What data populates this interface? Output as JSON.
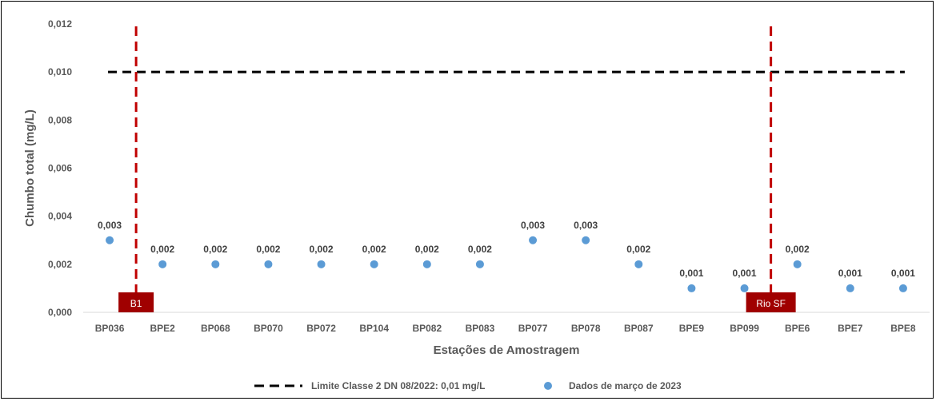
{
  "chart_data": {
    "type": "scatter",
    "ylabel": "Chumbo total (mg/L)",
    "xlabel": "Estações de Amostragem",
    "ylim": [
      0,
      0.012
    ],
    "yticks": [
      0,
      0.002,
      0.004,
      0.006,
      0.008,
      0.01,
      0.012
    ],
    "ytick_labels": [
      "0,000",
      "0,002",
      "0,004",
      "0,006",
      "0,008",
      "0,010",
      "0,012"
    ],
    "categories": [
      "BP036",
      "BPE2",
      "BP068",
      "BP070",
      "BP072",
      "BP104",
      "BP082",
      "BP083",
      "BP077",
      "BP078",
      "BP087",
      "BPE9",
      "BP099",
      "BPE6",
      "BPE7",
      "BPE8"
    ],
    "series": [
      {
        "name": "Dados de março de 2023",
        "color": "#5B9BD5",
        "values": [
          0.003,
          0.002,
          0.002,
          0.002,
          0.002,
          0.002,
          0.002,
          0.002,
          0.003,
          0.003,
          0.002,
          0.001,
          0.001,
          0.002,
          0.001,
          0.001
        ],
        "labels": [
          "0,003",
          "0,002",
          "0,002",
          "0,002",
          "0,002",
          "0,002",
          "0,002",
          "0,002",
          "0,003",
          "0,003",
          "0,002",
          "0,001",
          "0,001",
          "0,002",
          "0,001",
          "0,001"
        ]
      }
    ],
    "reference_line": {
      "name": "Limite Classe 2 DN 08/2022: 0,01 mg/L",
      "value": 0.01,
      "color": "#000000",
      "style": "dashed"
    },
    "markers": [
      {
        "label": "B1",
        "after_category": "BP036",
        "color": "#C00000"
      },
      {
        "label": "Rio SF",
        "after_category": "BP099",
        "color": "#C00000"
      }
    ],
    "legend_position": "bottom",
    "grid": false
  }
}
